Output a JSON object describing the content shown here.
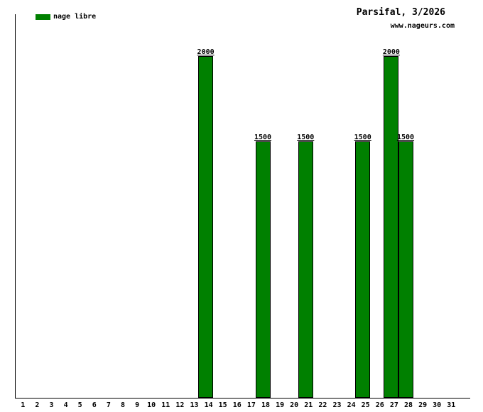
{
  "header": {
    "title": "Parsifal, 3/2026",
    "website": "www.nageurs.com"
  },
  "legend": {
    "label": "nage libre",
    "swatch_color": "#008000"
  },
  "chart_data": {
    "type": "bar",
    "title": "Parsifal, 3/2026",
    "subtitle": "www.nageurs.com",
    "series_name": "nage libre",
    "bar_color": "#008000",
    "categories": [
      "1",
      "2",
      "3",
      "4",
      "5",
      "6",
      "7",
      "8",
      "9",
      "10",
      "11",
      "12",
      "13",
      "14",
      "15",
      "16",
      "17",
      "18",
      "19",
      "20",
      "21",
      "22",
      "23",
      "24",
      "25",
      "26",
      "27",
      "28",
      "29",
      "30",
      "31"
    ],
    "values": [
      0,
      0,
      0,
      0,
      0,
      0,
      0,
      0,
      0,
      0,
      0,
      0,
      0,
      2000,
      0,
      0,
      0,
      1500,
      0,
      0,
      1500,
      0,
      0,
      0,
      1500,
      0,
      2000,
      1500,
      0,
      0,
      0
    ],
    "value_labels": [
      null,
      null,
      null,
      null,
      null,
      null,
      null,
      null,
      null,
      null,
      null,
      null,
      null,
      "2000",
      null,
      null,
      null,
      "1500",
      null,
      null,
      "1500",
      null,
      null,
      null,
      "1500",
      null,
      "2000",
      "1500",
      null,
      null,
      null
    ],
    "xlabel": "",
    "ylabel": "",
    "ylim": [
      0,
      2245
    ],
    "grid": false,
    "legend_position": "top-left"
  },
  "colors": {
    "bar": "#008000",
    "axis": "#000000",
    "text": "#000000",
    "background": "#ffffff"
  }
}
